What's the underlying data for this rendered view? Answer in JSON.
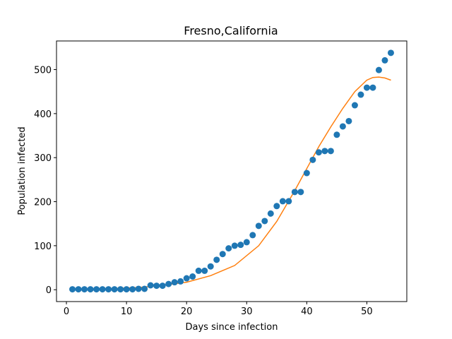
{
  "chart_data": {
    "type": "scatter",
    "title": "Fresno,California",
    "xlabel": "Days since infection",
    "ylabel": "Population infected",
    "xlim": [
      -1.65,
      56.65
    ],
    "ylim": [
      -26.9,
      565.0
    ],
    "xticks": [
      0,
      10,
      20,
      30,
      40,
      50
    ],
    "yticks": [
      0,
      100,
      200,
      300,
      400,
      500
    ],
    "grid": false,
    "colors": {
      "observed": "#1f77b4",
      "fit": "#ff7f0e"
    },
    "series": [
      {
        "type": "scatter",
        "x": [
          1,
          2,
          3,
          4,
          5,
          6,
          7,
          8,
          9,
          10,
          11,
          12,
          13,
          14,
          15,
          16,
          17,
          18,
          19,
          20,
          21,
          22,
          23,
          24,
          25,
          26,
          27,
          28,
          29,
          30,
          31,
          32,
          33,
          34,
          35,
          36,
          37,
          38,
          39,
          40,
          41,
          42,
          43,
          44,
          45,
          46,
          47,
          48,
          49,
          50,
          51,
          52,
          53,
          54
        ],
        "values": [
          1,
          1,
          1,
          1,
          1,
          1,
          1,
          1,
          1,
          1,
          1,
          2,
          2,
          10,
          9,
          9,
          13,
          17,
          19,
          26,
          30,
          43,
          43,
          53,
          68,
          81,
          94,
          100,
          102,
          108,
          124,
          145,
          156,
          173,
          190,
          201,
          201,
          222,
          222,
          265,
          295,
          312,
          315,
          315,
          352,
          371,
          383,
          419,
          443,
          459,
          459,
          499,
          521,
          538
        ]
      },
      {
        "type": "line",
        "x": [
          1,
          4,
          8,
          12,
          16,
          20,
          24,
          28,
          32,
          35,
          38,
          40,
          42,
          44,
          46,
          48,
          50,
          51,
          52,
          53,
          54
        ],
        "values": [
          1,
          2,
          3,
          5,
          10,
          17,
          32,
          55,
          100,
          155,
          225,
          275,
          325,
          370,
          412,
          450,
          476,
          482,
          483,
          481,
          476
        ]
      }
    ]
  }
}
